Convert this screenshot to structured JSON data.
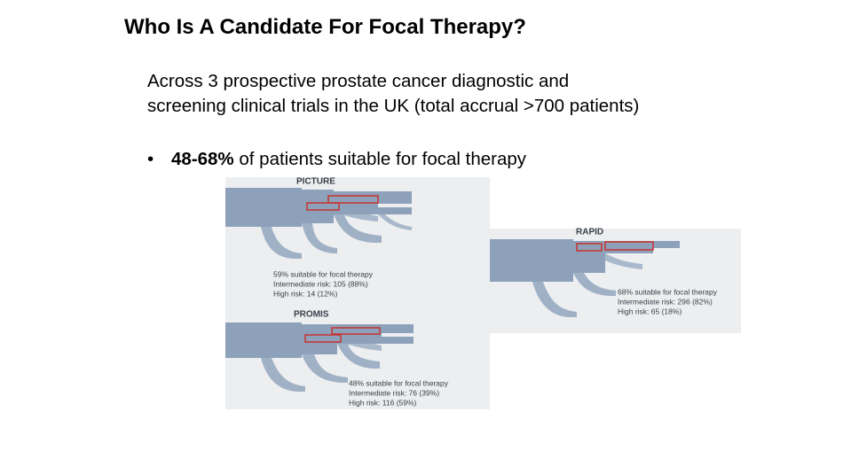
{
  "title": "Who Is A Candidate For Focal Therapy?",
  "paragraph": "Across 3 prospective prostate cancer diagnostic and screening clinical trials in the UK (total accrual >700 patients)",
  "bullet": {
    "bold": "48-68%",
    "text": "of patients suitable for focal therapy"
  },
  "figures": [
    {
      "label": "PICTURE",
      "caption": [
        "59% suitable for focal therapy",
        "Intermediate risk: 105 (88%)",
        "High risk: 14 (12%)"
      ]
    },
    {
      "label": "PROMIS",
      "caption": [
        "48% suitable for focal therapy",
        "Intermediate risk: 76 (39%)",
        "High risk: 116 (59%)"
      ]
    },
    {
      "label": "RAPID",
      "caption": [
        "68% suitable for focal therapy",
        "Intermediate risk: 296 (82%)",
        "High risk: 65 (18%)"
      ]
    }
  ]
}
